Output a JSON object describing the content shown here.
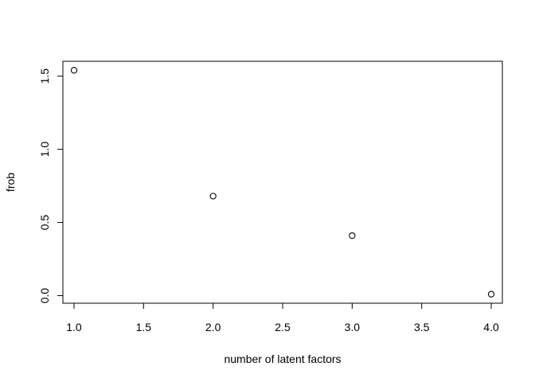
{
  "chart_data": {
    "type": "scatter",
    "title": "",
    "xlabel": "number of latent factors",
    "ylabel": "frob",
    "x": [
      1,
      2,
      3,
      4
    ],
    "y": [
      1.54,
      0.68,
      0.41,
      0.01
    ],
    "xlim": [
      0.92,
      4.08
    ],
    "ylim": [
      -0.0516,
      1.6016
    ],
    "xticks": [
      {
        "value": 1.0,
        "label": "1.0"
      },
      {
        "value": 1.5,
        "label": "1.5"
      },
      {
        "value": 2.0,
        "label": "2.0"
      },
      {
        "value": 2.5,
        "label": "2.5"
      },
      {
        "value": 3.0,
        "label": "3.0"
      },
      {
        "value": 3.5,
        "label": "3.5"
      },
      {
        "value": 4.0,
        "label": "4.0"
      }
    ],
    "yticks": [
      {
        "value": 0.0,
        "label": "0.0"
      },
      {
        "value": 0.5,
        "label": "0.5"
      },
      {
        "value": 1.0,
        "label": "1.0"
      },
      {
        "value": 1.5,
        "label": "1.5"
      }
    ],
    "grid": false,
    "marker": "open-circle",
    "marker_color": "#000000"
  }
}
